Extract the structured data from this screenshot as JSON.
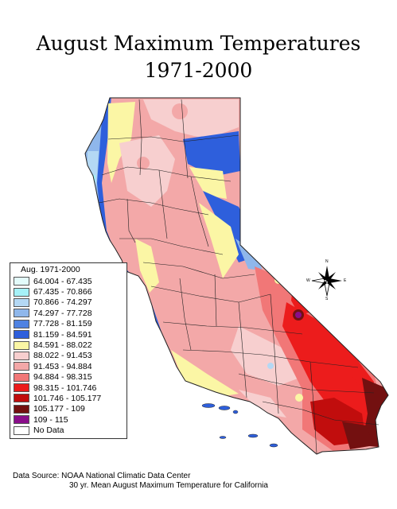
{
  "title": {
    "line1": "August Maximum Temperatures",
    "line2": "1971-2000"
  },
  "legend": {
    "title": "Aug. 1971-2000",
    "items": [
      {
        "label": "64.004 - 67.435",
        "color": "#e3fbfb"
      },
      {
        "label": "67.435 - 70.866",
        "color": "#a6f1f7"
      },
      {
        "label": "70.866 - 74.297",
        "color": "#b4d8f4"
      },
      {
        "label": "74.297 - 77.728",
        "color": "#8fb7eb"
      },
      {
        "label": "77.728 - 81.159",
        "color": "#4f82e2"
      },
      {
        "label": "81.159 - 84.591",
        "color": "#2e5fdc"
      },
      {
        "label": "84.591 - 88.022",
        "color": "#fbf6a5"
      },
      {
        "label": "88.022 - 91.453",
        "color": "#f7cfcf"
      },
      {
        "label": "91.453 - 94.884",
        "color": "#f3a8a8"
      },
      {
        "label": "94.884 - 98.315",
        "color": "#f17777"
      },
      {
        "label": "98.315 - 101.746",
        "color": "#ec1c1c"
      },
      {
        "label": "101.746 - 105.177",
        "color": "#c10d0d"
      },
      {
        "label": "105.177 - 109",
        "color": "#731010"
      },
      {
        "label": "109 - 115",
        "color": "#8a0d8a"
      },
      {
        "label": "No Data",
        "color": "#ffffff"
      }
    ]
  },
  "compass": {
    "n": "N",
    "s": "S",
    "e": "E",
    "w": "W"
  },
  "source": {
    "line1": "Data Source:  NOAA National Climatic Data Center",
    "line2": "30 yr. Mean August Maximum Temperature for California"
  }
}
